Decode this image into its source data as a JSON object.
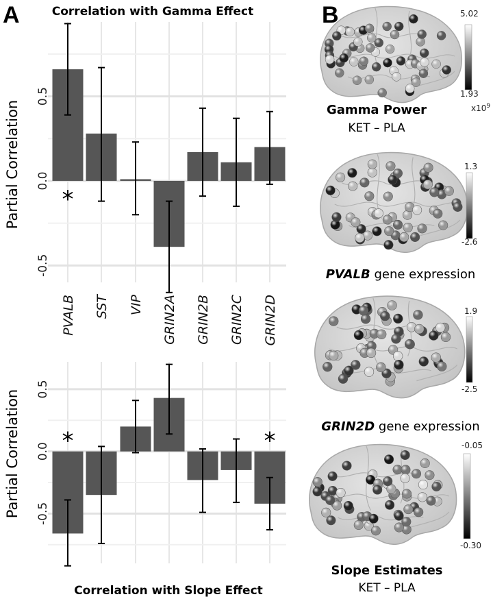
{
  "panel_a_label": "A",
  "panel_b_label": "B",
  "chart_data": [
    {
      "type": "bar",
      "title": "Correlation with Gamma Effect",
      "ylabel": "Partial Correlation",
      "ylim": [
        -0.6,
        0.94
      ],
      "yticks": [
        -0.5,
        0.0,
        0.5
      ],
      "ytick_labels": [
        "-0.5",
        "0.0",
        "0.5"
      ],
      "categories": [
        "PVALB",
        "SST",
        "VIP",
        "GRIN2A",
        "GRIN2B",
        "GRIN2C",
        "GRIN2D"
      ],
      "values": [
        0.66,
        0.28,
        0.01,
        -0.39,
        0.17,
        0.11,
        0.2
      ],
      "err_low": [
        0.39,
        -0.12,
        -0.2,
        -0.66,
        -0.09,
        -0.15,
        -0.02
      ],
      "err_high": [
        0.93,
        0.67,
        0.23,
        -0.12,
        0.43,
        0.37,
        0.41
      ],
      "significant": [
        true,
        false,
        false,
        false,
        false,
        false,
        false
      ],
      "significance_marker": "*"
    },
    {
      "type": "bar",
      "title": "Correlation with Slope Effect",
      "ylabel": "Partial Correlation",
      "ylim": [
        -0.9,
        0.72
      ],
      "yticks": [
        -0.5,
        0.0,
        0.5
      ],
      "ytick_labels": [
        "-0.5",
        "0.0",
        "0.5"
      ],
      "categories": [
        "PVALB",
        "SST",
        "VIP",
        "GRIN2A",
        "GRIN2B",
        "GRIN2C",
        "GRIN2D"
      ],
      "values": [
        -0.66,
        -0.35,
        0.2,
        0.43,
        -0.23,
        -0.15,
        -0.42
      ],
      "err_low": [
        -0.92,
        -0.74,
        -0.01,
        0.14,
        -0.49,
        -0.41,
        -0.63
      ],
      "err_high": [
        -0.39,
        0.04,
        0.41,
        0.7,
        0.02,
        0.1,
        -0.21
      ],
      "significant": [
        true,
        false,
        false,
        false,
        false,
        false,
        true
      ],
      "significance_marker": "*"
    }
  ],
  "brains": [
    {
      "caption_bold": "Gamma Power",
      "caption_rest": "",
      "caption2": "KET – PLA",
      "cb_max": "5.02",
      "cb_min": "1.93",
      "cb_unit_base": "x10",
      "cb_unit_exp": "9"
    },
    {
      "caption_bold": "PVALB",
      "caption_rest": " gene expression",
      "caption2": "",
      "cb_max": "1.3",
      "cb_min": "-2.6"
    },
    {
      "caption_bold": "GRIN2D",
      "caption_rest": " gene expression",
      "caption2": "",
      "cb_max": "1.9",
      "cb_min": "-2.5"
    },
    {
      "caption_bold": "Slope Estimates",
      "caption_rest": "",
      "caption2": "KET – PLA",
      "cb_max": "-0.05",
      "cb_min": "-0.30"
    }
  ]
}
